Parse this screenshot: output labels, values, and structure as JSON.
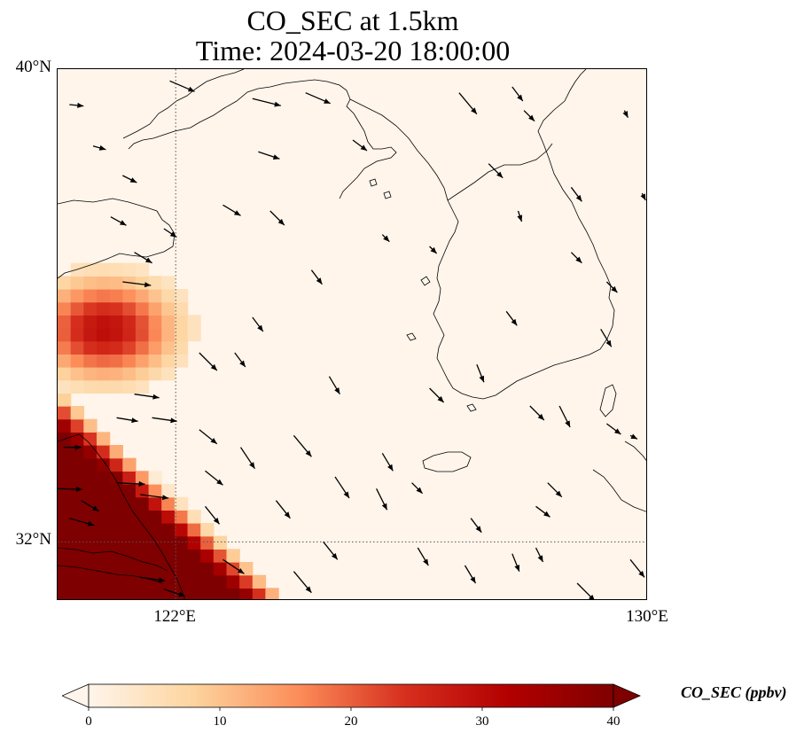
{
  "title": {
    "line1": "CO_SEC at 1.5km",
    "line2": "Time: 2024-03-20 18:00:00"
  },
  "map": {
    "lon_range": [
      120,
      130
    ],
    "lat_range": [
      31,
      40
    ],
    "gridlines": {
      "lons": [
        122
      ],
      "lats": [
        32
      ],
      "style": "dotted"
    },
    "background_color": "#fff5eb",
    "coastline_color": "#000000"
  },
  "axes": {
    "lat_ticks": [
      {
        "value": 40,
        "label": "40°N"
      },
      {
        "value": 32,
        "label": "32°N"
      }
    ],
    "lon_ticks": [
      {
        "value": 122,
        "label": "122°E"
      },
      {
        "value": 130,
        "label": "130°E"
      }
    ]
  },
  "colorbar": {
    "label": "CO_SEC (ppbv)",
    "min": 0,
    "max": 40,
    "extend": "both",
    "colormap": "OrRd",
    "colors": [
      "#fff5eb",
      "#fdd49e",
      "#fc8d59",
      "#d7301f",
      "#b30000",
      "#7f0000"
    ],
    "ticks": [
      {
        "value": 0,
        "label": "0"
      },
      {
        "value": 10,
        "label": "10"
      },
      {
        "value": 20,
        "label": "20"
      },
      {
        "value": 30,
        "label": "30"
      },
      {
        "value": 40,
        "label": "40"
      }
    ]
  },
  "co_field": {
    "units": "ppbv",
    "plume_north": {
      "lon_range": [
        120,
        122.3
      ],
      "lat_range": [
        34.3,
        36.6
      ],
      "peak_value": 30,
      "peak_location": [
        120.8,
        35.6
      ]
    },
    "plume_south": {
      "lon_range": [
        120,
        123.9
      ],
      "lat_range": [
        31,
        34.5
      ],
      "peak_value": 45,
      "edge_direction": "northwest-to-southeast"
    }
  },
  "wind_vectors": [
    [
      120.2,
      39.4,
      0.2,
      -0.02
    ],
    [
      120.6,
      38.7,
      0.18,
      -0.05
    ],
    [
      121.1,
      38.2,
      0.2,
      -0.1
    ],
    [
      120.9,
      37.5,
      0.22,
      -0.12
    ],
    [
      121.8,
      37.3,
      0.18,
      -0.12
    ],
    [
      121.3,
      36.9,
      0.25,
      -0.15
    ],
    [
      122.8,
      37.7,
      0.25,
      -0.15
    ],
    [
      123.6,
      37.6,
      0.2,
      -0.2
    ],
    [
      124.3,
      36.6,
      0.15,
      -0.2
    ],
    [
      121.9,
      39.8,
      0.35,
      -0.15
    ],
    [
      123.3,
      39.5,
      0.4,
      -0.1
    ],
    [
      123.4,
      38.6,
      0.3,
      -0.1
    ],
    [
      124.2,
      39.6,
      0.35,
      -0.15
    ],
    [
      126.8,
      39.6,
      0.25,
      -0.3
    ],
    [
      127.9,
      39.3,
      0.15,
      -0.15
    ],
    [
      129.6,
      39.3,
      0.05,
      -0.1
    ],
    [
      125.0,
      38.8,
      0.2,
      -0.15
    ],
    [
      127.3,
      38.4,
      0.2,
      -0.2
    ],
    [
      128.7,
      38.0,
      0.15,
      -0.2
    ],
    [
      129.9,
      37.9,
      0.05,
      -0.1
    ],
    [
      127.8,
      37.6,
      0.05,
      -0.15
    ],
    [
      125.5,
      37.2,
      0.1,
      -0.1
    ],
    [
      126.3,
      37.0,
      0.1,
      -0.1
    ],
    [
      128.7,
      36.9,
      0.15,
      -0.15
    ],
    [
      129.3,
      36.4,
      0.15,
      -0.15
    ],
    [
      127.6,
      35.9,
      0.15,
      -0.2
    ],
    [
      129.2,
      35.6,
      0.15,
      -0.25
    ],
    [
      123.3,
      35.8,
      0.15,
      -0.2
    ],
    [
      122.4,
      35.2,
      0.25,
      -0.25
    ],
    [
      123.0,
      35.2,
      0.15,
      -0.2
    ],
    [
      124.6,
      34.8,
      0.15,
      -0.25
    ],
    [
      126.3,
      34.6,
      0.2,
      -0.2
    ],
    [
      127.1,
      35.0,
      0.1,
      -0.25
    ],
    [
      128.0,
      34.3,
      0.2,
      -0.2
    ],
    [
      128.5,
      34.3,
      0.15,
      -0.3
    ],
    [
      129.3,
      34.0,
      0.2,
      -0.15
    ],
    [
      129.7,
      33.8,
      0.1,
      -0.05
    ],
    [
      121.3,
      34.5,
      0.35,
      -0.05
    ],
    [
      121.6,
      34.1,
      0.35,
      -0.05
    ],
    [
      122.4,
      33.9,
      0.25,
      -0.2
    ],
    [
      123.1,
      33.6,
      0.2,
      -0.3
    ],
    [
      124.0,
      33.8,
      0.25,
      -0.3
    ],
    [
      124.7,
      33.1,
      0.2,
      -0.3
    ],
    [
      125.4,
      32.9,
      0.15,
      -0.3
    ],
    [
      125.5,
      33.5,
      0.15,
      -0.25
    ],
    [
      126.0,
      33.0,
      0.15,
      -0.15
    ],
    [
      127.0,
      32.4,
      0.15,
      -0.2
    ],
    [
      128.3,
      33.0,
      0.2,
      -0.2
    ],
    [
      128.1,
      32.6,
      0.2,
      -0.15
    ],
    [
      120.1,
      33.6,
      0.25,
      -0.0
    ],
    [
      120.0,
      32.9,
      0.35,
      -0.01
    ],
    [
      121.0,
      33.0,
      0.4,
      -0.02
    ],
    [
      121.4,
      32.8,
      0.4,
      -0.05
    ],
    [
      120.2,
      32.4,
      0.35,
      -0.1
    ],
    [
      121.0,
      34.1,
      0.3,
      -0.05
    ],
    [
      122.5,
      33.2,
      0.25,
      -0.2
    ],
    [
      122.5,
      32.6,
      0.2,
      -0.25
    ],
    [
      123.7,
      32.7,
      0.2,
      -0.25
    ],
    [
      124.5,
      32.0,
      0.2,
      -0.25
    ],
    [
      126.1,
      31.9,
      0.15,
      -0.25
    ],
    [
      126.9,
      31.6,
      0.15,
      -0.25
    ],
    [
      127.7,
      31.8,
      0.1,
      -0.25
    ],
    [
      128.1,
      31.9,
      0.1,
      -0.2
    ],
    [
      128.8,
      31.3,
      0.25,
      -0.25
    ],
    [
      129.7,
      31.7,
      0.2,
      -0.25
    ],
    [
      122.8,
      31.7,
      0.3,
      -0.2
    ],
    [
      124.0,
      31.5,
      0.25,
      -0.3
    ],
    [
      124.4,
      31.0,
      0.25,
      -0.3
    ],
    [
      121.4,
      31.4,
      0.35,
      -0.05
    ],
    [
      121.8,
      31.2,
      0.3,
      -0.1
    ],
    [
      120.4,
      32.7,
      0.25,
      -0.15
    ],
    [
      127.7,
      39.7,
      0.15,
      -0.2
    ],
    [
      121.1,
      36.4,
      0.4,
      -0.05
    ]
  ]
}
